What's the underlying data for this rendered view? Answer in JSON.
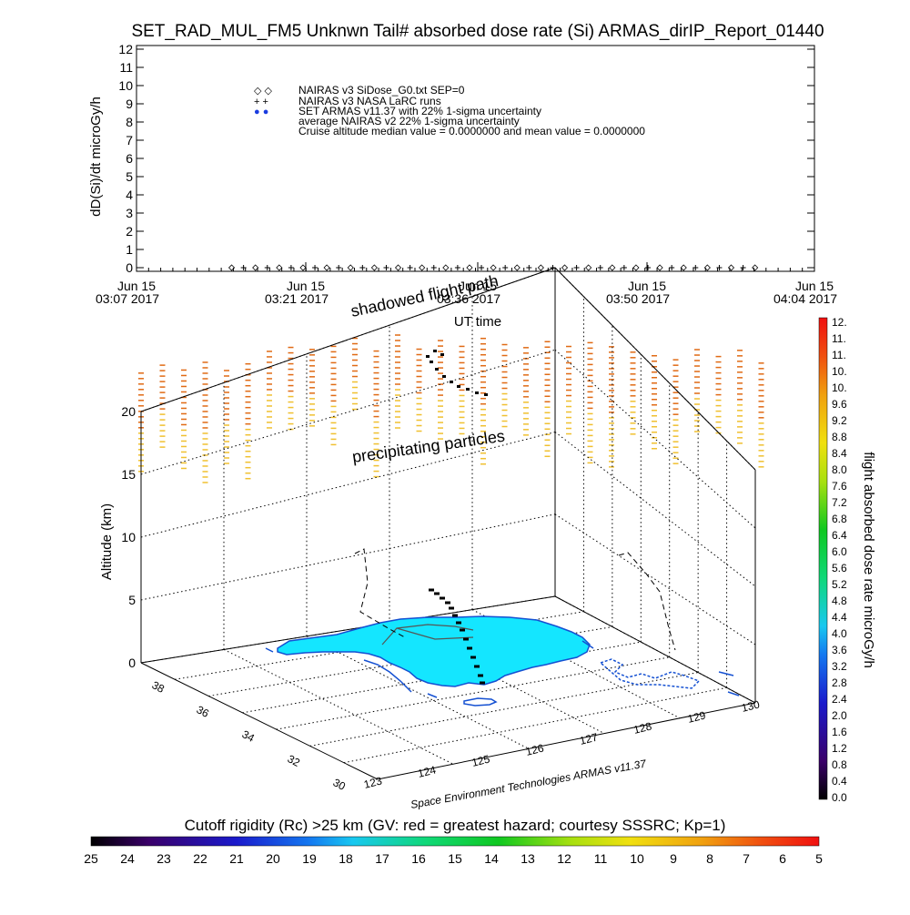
{
  "title": "SET_RAD_MUL_FM5 Unknwn Tail#  absorbed dose rate (Si) ARMAS_dirIP_Report_01440",
  "chart_data": [
    {
      "type": "scatter",
      "ylabel": "dD(Si)/dt microGy/h",
      "xlabel": "UT time",
      "ylim": [
        0,
        12
      ],
      "y_ticks": [
        "0",
        "1",
        "2",
        "3",
        "4",
        "5",
        "6",
        "7",
        "8",
        "9",
        "10",
        "11",
        "12"
      ],
      "x_ticks": [
        {
          "date": "Jun 15",
          "time": "03:07 2017"
        },
        {
          "date": "Jun 15",
          "time": "03:21 2017"
        },
        {
          "date": "Jun 15",
          "time": "03:36 2017"
        },
        {
          "date": "Jun 15",
          "time": "03:50 2017"
        },
        {
          "date": "Jun 15",
          "time": "04:04 2017"
        }
      ],
      "legend": [
        {
          "symbol": "◇ ◇",
          "text": "NAIRAS v3 SiDose_G0.txt SEP=0"
        },
        {
          "symbol": "+ +",
          "text": "NAIRAS v3 NASA LaRC runs"
        },
        {
          "symbol": "● ●",
          "text": "SET ARMAS v11.37 with 22% 1-sigma uncertainty",
          "color": "#1a3ce0"
        },
        {
          "symbol": "",
          "text": "average NAIRAS v2 22% 1-sigma uncertainty"
        },
        {
          "symbol": "",
          "text": "Cruise altitude median value = 0.0000000 and mean value = 0.0000000"
        }
      ],
      "legend_placement": "top-left inside plot",
      "series": [
        {
          "name": "NAIRAS v3 SiDose_G0.txt SEP=0",
          "marker": "diamond",
          "x": [
            "03:15",
            "03:17",
            "03:19",
            "03:21",
            "03:23",
            "03:25",
            "03:27",
            "03:29",
            "03:31",
            "03:33",
            "03:35",
            "03:37",
            "03:39",
            "03:41",
            "03:43",
            "03:45",
            "03:47",
            "03:49",
            "03:51",
            "03:53",
            "03:55",
            "03:57",
            "03:59"
          ],
          "y": [
            0,
            0,
            0,
            0,
            0,
            0,
            0,
            0,
            0,
            0,
            0,
            0,
            0,
            0,
            0,
            0,
            0,
            0,
            0,
            0,
            0,
            0,
            0
          ]
        },
        {
          "name": "NAIRAS v3 NASA LaRC runs",
          "marker": "plus",
          "x": [
            "03:16",
            "03:18",
            "03:20",
            "03:22",
            "03:24",
            "03:26",
            "03:28",
            "03:30",
            "03:32",
            "03:34",
            "03:36",
            "03:38",
            "03:40",
            "03:42",
            "03:44",
            "03:46",
            "03:48",
            "03:50",
            "03:52",
            "03:54",
            "03:56",
            "03:58"
          ],
          "y": [
            0,
            0,
            0,
            0,
            0,
            0,
            0,
            0,
            0,
            0,
            0,
            0,
            0,
            0,
            0,
            0,
            0,
            0,
            0,
            0,
            0,
            0
          ]
        }
      ]
    },
    {
      "type": "scatter",
      "projection": "3d",
      "zlabel": "Altitude (km)",
      "z_ticks": [
        "0",
        "5",
        "10",
        "15",
        "20"
      ],
      "lat_ticks": [
        "30",
        "32",
        "34",
        "36",
        "38"
      ],
      "lon_ticks": [
        "123",
        "124",
        "125",
        "126",
        "127",
        "128",
        "129",
        "130"
      ],
      "annotations": [
        "shadowed flight path",
        "precipitating particles"
      ],
      "credit": "Space Environment Technologies ARMAS v11.37",
      "grid": true,
      "colorbar": {
        "label": "flight absorbed dose rate microGy/h",
        "ticks": [
          "0.0",
          "0.4",
          "0.8",
          "1.2",
          "1.6",
          "2.0",
          "2.4",
          "2.8",
          "3.2",
          "3.6",
          "4.0",
          "4.4",
          "4.8",
          "5.2",
          "5.6",
          "6.0",
          "6.4",
          "6.8",
          "7.2",
          "7.6",
          "8.0",
          "8.4",
          "8.8",
          "9.2",
          "9.6",
          "10.",
          "10.",
          "11.",
          "11.",
          "12."
        ]
      }
    }
  ],
  "rigidity": {
    "title": "Cutoff rigidity (Rc) >25 km (GV: red = greatest hazard; courtesy SSSRC; Kp=1)",
    "ticks": [
      "25",
      "24",
      "23",
      "22",
      "21",
      "20",
      "19",
      "18",
      "17",
      "16",
      "15",
      "14",
      "13",
      "12",
      "11",
      "10",
      "9",
      "8",
      "7",
      "6",
      "5"
    ]
  },
  "colors": {
    "land": "#14e6ff",
    "coast": "#1450d2",
    "particles_high": "#e06a14",
    "particles_low": "#f0c030",
    "armas_marker": "#1a3ce0"
  }
}
